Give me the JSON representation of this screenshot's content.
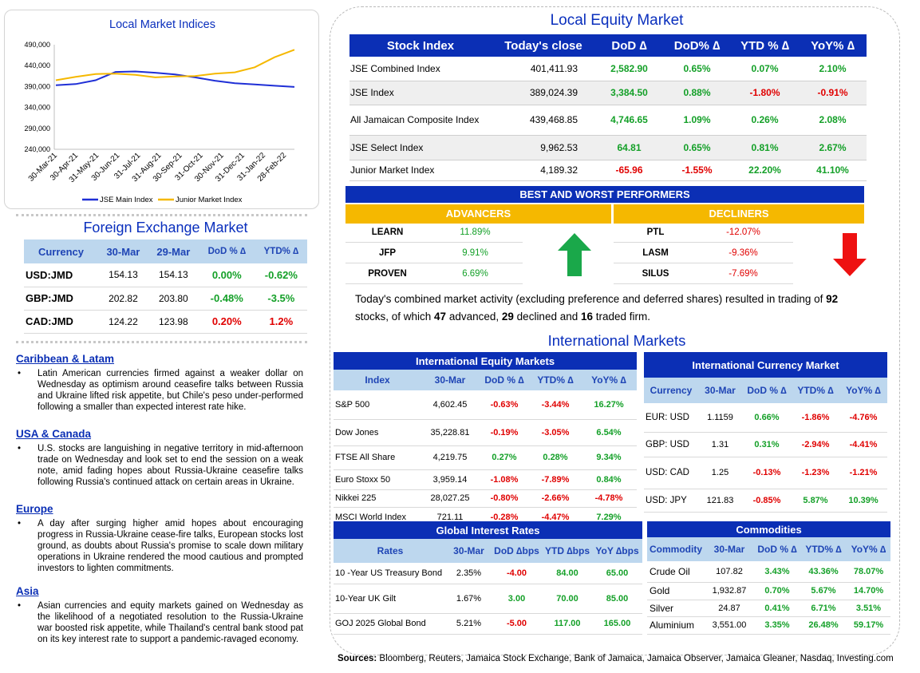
{
  "chart_data": {
    "type": "line",
    "title": "Local Market Indices",
    "x_ticks": [
      "30-Mar-21",
      "30-Apr-21",
      "31-May-21",
      "30-Jun-21",
      "31-Jul-21",
      "31-Aug-21",
      "30-Sep-21",
      "31-Oct-21",
      "30-Nov-21",
      "31-Dec-21",
      "31-Jan-22",
      "28-Feb-22"
    ],
    "y_ticks": [
      "490,000",
      "440,000",
      "390,000",
      "340,000",
      "290,000",
      "240,000"
    ],
    "ylim": [
      240000,
      490000
    ],
    "series": [
      {
        "name": "JSE Main Index",
        "color": "#1f2fd6",
        "values": [
          393000,
          396000,
          405000,
          425000,
          426000,
          423000,
          419000,
          412000,
          404000,
          398000,
          395000,
          392000,
          389000
        ]
      },
      {
        "name": "Junior Market Index",
        "color": "#f5b800",
        "values": [
          405000,
          413000,
          420000,
          421000,
          418000,
          412000,
          414000,
          415000,
          421000,
          424000,
          436000,
          460000,
          478000
        ]
      }
    ],
    "legend": "bottom"
  },
  "fx": {
    "title": "Foreign Exchange Market",
    "headers": [
      "Currency",
      "30-Mar",
      "29-Mar",
      "DoD % ∆",
      "YTD% ∆"
    ],
    "rows": [
      {
        "c": "USD:JMD",
        "a": "154.13",
        "b": "154.13",
        "d": "0.00%",
        "y": "-0.62%",
        "ds": "pos",
        "ys": "pos"
      },
      {
        "c": "GBP:JMD",
        "a": "202.82",
        "b": "203.80",
        "d": "-0.48%",
        "y": "-3.5%",
        "ds": "pos",
        "ys": "pos"
      },
      {
        "c": "CAD:JMD",
        "a": "124.22",
        "b": "123.98",
        "d": "0.20%",
        "y": "1.2%",
        "ds": "neg",
        "ys": "neg"
      }
    ]
  },
  "news": [
    {
      "h": "Caribbean & Latam",
      "t": "Latin American currencies firmed against a weaker dollar on Wednesday as optimism around ceasefire talks between Russia and Ukraine lifted risk appetite, but Chile's peso under-performed following a smaller than expected interest rate hike."
    },
    {
      "h": "USA & Canada",
      "t": "U.S. stocks are languishing in negative territory in mid-afternoon trade on Wednesday and look set to end the session on a weak note, amid fading hopes about Russia-Ukraine ceasefire talks following Russia's continued attack on certain areas in Ukraine."
    },
    {
      "h": "Europe",
      "t": "A day after surging higher amid hopes about encouraging progress in Russia-Ukraine cease-fire talks, European stocks lost ground, as doubts about Russia's promise to scale down military operations in Ukraine rendered the mood cautious and prompted investors to lighten commitments."
    },
    {
      "h": "Asia",
      "t": "Asian currencies and equity markets gained on Wednesday as the likelihood of a negotiated resolution to the Russia-Ukraine war boosted risk appetite, while Thailand's central bank stood pat on its key interest rate to support a pandemic-ravaged economy."
    }
  ],
  "equity": {
    "title": "Local Equity Market",
    "headers": [
      "Stock Index",
      "Today's close",
      "DoD ∆",
      "DoD% ∆",
      "YTD % ∆",
      "YoY% ∆"
    ],
    "rows": [
      {
        "n": "JSE Combined Index",
        "c": "401,411.93",
        "d": "2,582.90",
        "dp": "0.65%",
        "y": "0.07%",
        "yy": "2.10%",
        "s": [
          "pos",
          "pos",
          "pos",
          "pos"
        ]
      },
      {
        "n": "JSE Index",
        "c": "389,024.39",
        "d": "3,384.50",
        "dp": "0.88%",
        "y": "-1.80%",
        "yy": "-0.91%",
        "s": [
          "pos",
          "pos",
          "neg",
          "neg"
        ]
      },
      {
        "n": "All Jamaican Composite Index",
        "c": "439,468.85",
        "d": "4,746.65",
        "dp": "1.09%",
        "y": "0.26%",
        "yy": "2.08%",
        "s": [
          "pos",
          "pos",
          "pos",
          "pos"
        ]
      },
      {
        "n": "JSE Select Index",
        "c": "9,962.53",
        "d": "64.81",
        "dp": "0.65%",
        "y": "0.81%",
        "yy": "2.67%",
        "s": [
          "pos",
          "pos",
          "pos",
          "pos"
        ]
      },
      {
        "n": "Junior Market Index",
        "c": "4,189.32",
        "d": "-65.96",
        "dp": "-1.55%",
        "y": "22.20%",
        "yy": "41.10%",
        "s": [
          "neg",
          "neg",
          "pos",
          "pos"
        ]
      }
    ]
  },
  "performers": {
    "title": "BEST AND WORST PERFORMERS",
    "adv_label": "ADVANCERS",
    "dec_label": "DECLINERS",
    "advancers": [
      {
        "n": "LEARN",
        "v": "11.89%"
      },
      {
        "n": "JFP",
        "v": "9.91%"
      },
      {
        "n": "PROVEN",
        "v": "6.69%"
      }
    ],
    "decliners": [
      {
        "n": "PTL",
        "v": "-12.07%"
      },
      {
        "n": "LASM",
        "v": "-9.36%"
      },
      {
        "n": "SILUS",
        "v": "-7.69%"
      }
    ]
  },
  "summary": {
    "p1": "Today's combined market activity (excluding preference and deferred shares) resulted in trading of ",
    "n1": "92",
    "p2": "stocks, of which ",
    "n2": "47",
    "p3": " advanced, ",
    "n3": "29",
    "p4": " declined and ",
    "n4": "16",
    "p5": " traded firm."
  },
  "intl": {
    "title": "International Markets",
    "equity": {
      "title": "International Equity Markets",
      "headers": [
        "Index",
        "30-Mar",
        "DoD % ∆",
        "YTD% ∆",
        "YoY% ∆"
      ],
      "rows": [
        {
          "n": "S&P 500",
          "a": "4,602.45",
          "d": "-0.63%",
          "y": "-3.44%",
          "yy": "16.27%",
          "s": [
            "neg",
            "neg",
            "pos"
          ]
        },
        {
          "n": "Dow Jones",
          "a": "35,228.81",
          "d": "-0.19%",
          "y": "-3.05%",
          "yy": "6.54%",
          "s": [
            "neg",
            "neg",
            "pos"
          ]
        },
        {
          "n": "FTSE All Share",
          "a": "4,219.75",
          "d": "0.27%",
          "y": "0.28%",
          "yy": "9.34%",
          "s": [
            "pos",
            "pos",
            "pos"
          ]
        },
        {
          "n": "Euro Stoxx 50",
          "a": "3,959.14",
          "d": "-1.08%",
          "y": "-7.89%",
          "yy": "0.84%",
          "s": [
            "neg",
            "neg",
            "pos"
          ]
        },
        {
          "n": "Nikkei 225",
          "a": "28,027.25",
          "d": "-0.80%",
          "y": "-2.66%",
          "yy": "-4.78%",
          "s": [
            "neg",
            "neg",
            "neg"
          ]
        },
        {
          "n": "MSCI World Index",
          "a": "721.11",
          "d": "-0.28%",
          "y": "-4.47%",
          "yy": "7.29%",
          "s": [
            "neg",
            "neg",
            "pos"
          ]
        }
      ]
    },
    "currency": {
      "title": "International Currency Market",
      "headers": [
        "Currency",
        "30-Mar",
        "DoD % ∆",
        "YTD% ∆",
        "YoY% ∆"
      ],
      "rows": [
        {
          "n": "EUR: USD",
          "a": "1.1159",
          "d": "0.66%",
          "y": "-1.86%",
          "yy": "-4.76%",
          "s": [
            "pos",
            "neg",
            "neg"
          ]
        },
        {
          "n": "GBP: USD",
          "a": "1.31",
          "d": "0.31%",
          "y": "-2.94%",
          "yy": "-4.41%",
          "s": [
            "pos",
            "neg",
            "neg"
          ]
        },
        {
          "n": "USD: CAD",
          "a": "1.25",
          "d": "-0.13%",
          "y": "-1.23%",
          "yy": "-1.21%",
          "s": [
            "neg",
            "neg",
            "neg"
          ]
        },
        {
          "n": "USD: JPY",
          "a": "121.83",
          "d": "-0.85%",
          "y": "5.87%",
          "yy": "10.39%",
          "s": [
            "neg",
            "pos",
            "pos"
          ]
        }
      ]
    },
    "rates": {
      "title": "Global Interest Rates",
      "headers": [
        "Rates",
        "30-Mar",
        "DoD ∆bps",
        "YTD ∆bps",
        "YoY ∆bps"
      ],
      "rows": [
        {
          "n": "10 -Year US Treasury Bond",
          "a": "2.35%",
          "d": "-4.00",
          "y": "84.00",
          "yy": "65.00",
          "s": [
            "neg",
            "pos",
            "pos"
          ]
        },
        {
          "n": "10-Year UK Gilt",
          "a": "1.67%",
          "d": "3.00",
          "y": "70.00",
          "yy": "85.00",
          "s": [
            "pos",
            "pos",
            "pos"
          ]
        },
        {
          "n": "GOJ 2025 Global Bond",
          "a": "5.21%",
          "d": "-5.00",
          "y": "117.00",
          "yy": "165.00",
          "s": [
            "neg",
            "pos",
            "pos"
          ]
        }
      ]
    },
    "commodities": {
      "title": "Commodities",
      "headers": [
        "Commodity",
        "30-Mar",
        "DoD % ∆",
        "YTD% ∆",
        "YoY% ∆"
      ],
      "rows": [
        {
          "n": "Crude Oil",
          "a": "107.82",
          "d": "3.43%",
          "y": "43.36%",
          "yy": "78.07%",
          "s": [
            "pos",
            "pos",
            "pos"
          ]
        },
        {
          "n": "Gold",
          "a": "1,932.87",
          "d": "0.70%",
          "y": "5.67%",
          "yy": "14.70%",
          "s": [
            "pos",
            "pos",
            "pos"
          ]
        },
        {
          "n": "Silver",
          "a": "24.87",
          "d": "0.41%",
          "y": "6.71%",
          "yy": "3.51%",
          "s": [
            "pos",
            "pos",
            "pos"
          ]
        },
        {
          "n": "Aluminium",
          "a": "3,551.00",
          "d": "3.35%",
          "y": "26.48%",
          "yy": "59.17%",
          "s": [
            "pos",
            "pos",
            "pos"
          ]
        }
      ]
    }
  },
  "sources": {
    "label": "Sources:",
    "text": " Bloomberg, Reuters, Jamaica Stock Exchange, Bank of Jamaica, Jamaica Observer, Jamaica Gleaner, Nasdaq, Investing.com"
  }
}
